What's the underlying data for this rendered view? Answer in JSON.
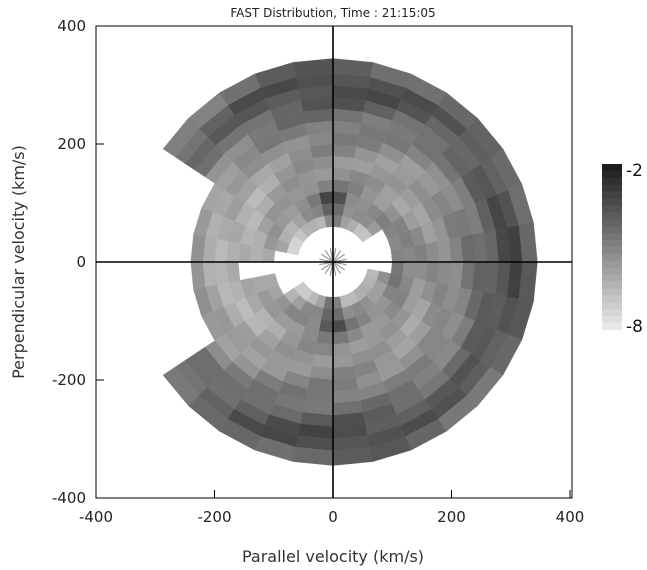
{
  "chart_data": {
    "type": "heatmap",
    "geometry": "polar",
    "title": "FAST Distribution, Time : 21:15:05",
    "xlabel": "Parallel velocity (km/s)",
    "ylabel": "Perpendicular velocity (km/s)",
    "xlim": [
      -400,
      400
    ],
    "ylim": [
      -400,
      400
    ],
    "xticks": [
      -400,
      -200,
      0,
      200,
      400
    ],
    "yticks": [
      -400,
      -200,
      0,
      200,
      400
    ],
    "grid": false,
    "colorbar": {
      "min": -8,
      "max": -2,
      "min_label": "-8",
      "max_label": "-2",
      "placement": "right"
    },
    "colors": {
      "darkest": "#1a1a1a",
      "lightest": "#ececec",
      "axes": "#000000"
    },
    "radial_bins": [
      60,
      80,
      100,
      120,
      140,
      160,
      180,
      200,
      220,
      240,
      260,
      280,
      300,
      320,
      345
    ],
    "angle_bin_deg": 11.25,
    "min_visible_angle_deg": -145,
    "max_visible_angle_deg": 145,
    "levels_by_radius": [
      -6.3,
      -5.4,
      -5.0,
      -5.2,
      -5.5,
      -5.6,
      -5.4,
      -5.2,
      -4.9,
      -4.6,
      -4.1,
      -3.7,
      -3.6,
      -4.2,
      -5.5
    ]
  }
}
